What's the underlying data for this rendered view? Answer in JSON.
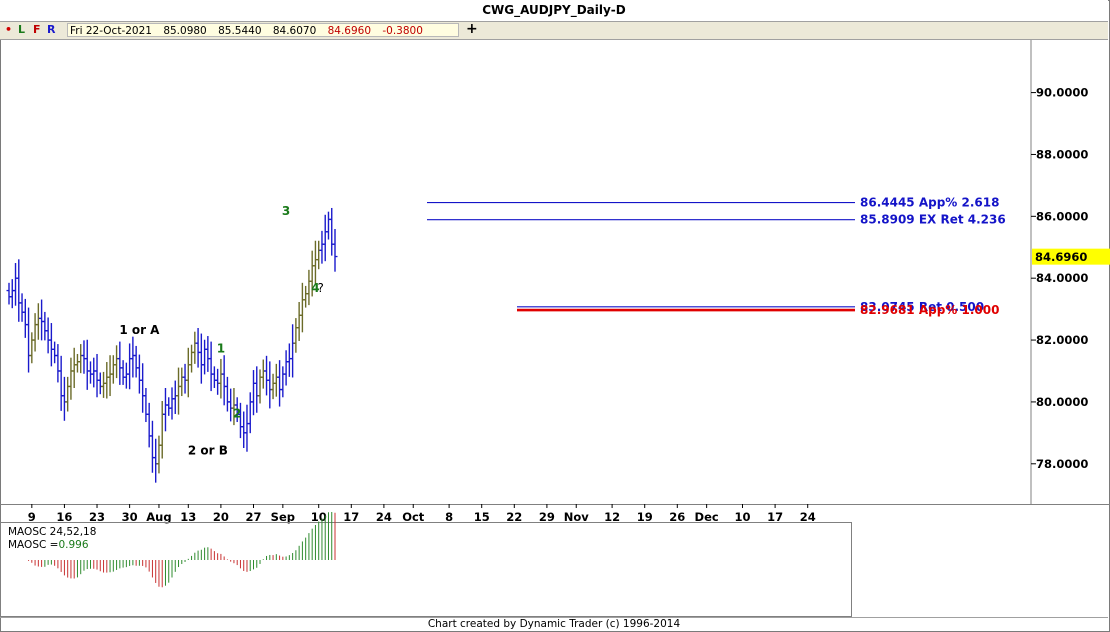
{
  "window": {
    "title": "CWG_AUDJPY_Daily-D",
    "footer": "Chart created by Dynamic Trader  (c) 1996-2014"
  },
  "toolbar": {
    "dot": "•",
    "btn_l": "L",
    "btn_f": "F",
    "btn_r": "R",
    "date": "Fri 22-Oct-2021",
    "open": "85.0980",
    "high": "85.5440",
    "low": "84.6070",
    "close": "84.6960",
    "change": "-0.3800",
    "plus": "+"
  },
  "colors": {
    "bar_blue": "#1a1acc",
    "bar_olive": "#6b6b28",
    "level_blue": "#1414c8",
    "level_red": "#e00000",
    "wave_green": "#1a7a1a",
    "price_tag_bg": "#ffff00",
    "osc_red": "#c83232",
    "osc_green": "#2e8b2e"
  },
  "oscillator": {
    "title": "MAOSC 24,52,18",
    "value_label": "MAOSC =",
    "value": "0.996"
  },
  "chart_data": {
    "type": "ohlc",
    "title": "CWG_AUDJPY_Daily-D",
    "price_axis": {
      "ticks": [
        "90.0000",
        "88.0000",
        "86.0000",
        "84.0000",
        "82.0000",
        "80.0000",
        "78.0000"
      ],
      "tick_values": [
        90,
        88,
        86,
        84,
        82,
        80,
        78
      ],
      "ylim": [
        76.7,
        91.7
      ]
    },
    "current_price_tag": "84.6960",
    "x_axis": {
      "labels": [
        {
          "label": "9",
          "bar": 7
        },
        {
          "label": "16",
          "bar": 17
        },
        {
          "label": "23",
          "bar": 27
        },
        {
          "label": "30",
          "bar": 37
        },
        {
          "label": "Aug",
          "bar": 46
        },
        {
          "label": "13",
          "bar": 55
        },
        {
          "label": "20",
          "bar": 65
        },
        {
          "label": "27",
          "bar": 75
        },
        {
          "label": "Sep",
          "bar": 84
        },
        {
          "label": "10",
          "bar": 95
        },
        {
          "label": "17",
          "bar": 105
        },
        {
          "label": "24",
          "bar": 115
        },
        {
          "label": "Oct",
          "bar": 124
        },
        {
          "label": "8",
          "bar": 135
        },
        {
          "label": "15",
          "bar": 145
        },
        {
          "label": "22",
          "bar": 155
        },
        {
          "label": "29",
          "bar": 165
        },
        {
          "label": "Nov",
          "bar": 174
        },
        {
          "label": "12",
          "bar": 185
        },
        {
          "label": "19",
          "bar": 195
        },
        {
          "label": "26",
          "bar": 205
        },
        {
          "label": "Dec",
          "bar": 214
        },
        {
          "label": "10",
          "bar": 225
        },
        {
          "label": "17",
          "bar": 235
        },
        {
          "label": "24",
          "bar": 245
        }
      ]
    },
    "ohlc_closes": [
      83.4,
      83.6,
      84.0,
      83.2,
      82.9,
      82.5,
      81.5,
      82.0,
      82.5,
      82.7,
      82.6,
      82.3,
      82.0,
      81.7,
      81.5,
      81.0,
      80.2,
      80.0,
      80.5,
      81.0,
      81.2,
      81.3,
      81.5,
      81.4,
      81.0,
      80.9,
      81.0,
      80.7,
      80.5,
      80.6,
      80.8,
      80.9,
      81.2,
      81.4,
      81.1,
      80.8,
      80.9,
      81.4,
      81.5,
      81.1,
      80.7,
      80.2,
      79.6,
      78.9,
      78.2,
      78.0,
      78.6,
      79.6,
      79.9,
      79.8,
      80.1,
      80.2,
      80.5,
      80.8,
      80.7,
      81.2,
      81.6,
      81.9,
      81.6,
      81.2,
      81.7,
      81.4,
      80.9,
      80.7,
      80.6,
      80.9,
      80.5,
      80.0,
      79.8,
      79.9,
      79.6,
      79.2,
      79.0,
      79.3,
      80.0,
      80.6,
      80.2,
      80.8,
      81.0,
      80.7,
      80.4,
      80.6,
      80.8,
      80.4,
      80.9,
      81.3,
      81.4,
      81.9,
      82.4,
      82.8,
      83.3,
      83.5,
      83.9,
      84.4,
      84.6,
      84.9,
      85.1,
      85.5,
      85.9,
      85.1,
      84.7
    ],
    "levels": [
      {
        "value": 86.4445,
        "text": "86.4445 App% 2.618",
        "color": "blue"
      },
      {
        "value": 85.8909,
        "text": "85.8909 EX Ret 4.236",
        "color": "blue"
      },
      {
        "value": 83.0745,
        "text": "83.0745 Ret 0.500",
        "color": "blue"
      },
      {
        "value": 82.9681,
        "text": "82.9681 App% 1.000",
        "color": "red"
      }
    ],
    "wave_labels": [
      {
        "text": "1 or A",
        "bar": 40,
        "price": 82.2,
        "color": "black"
      },
      {
        "text": "2 or B",
        "bar": 61,
        "price": 78.3,
        "color": "black"
      },
      {
        "text": "1",
        "bar": 65,
        "price": 81.6,
        "color": "green"
      },
      {
        "text": "2",
        "bar": 70,
        "price": 79.5,
        "color": "green"
      },
      {
        "text": "3",
        "bar": 85,
        "price": 86.05,
        "color": "green"
      },
      {
        "text": "4",
        "bar": 94,
        "price": 83.55,
        "color": "green"
      },
      {
        "text": "?",
        "bar": 95.6,
        "price": 83.55,
        "color": "black"
      }
    ],
    "oscillator_values_note": "MAOSC histogram"
  }
}
